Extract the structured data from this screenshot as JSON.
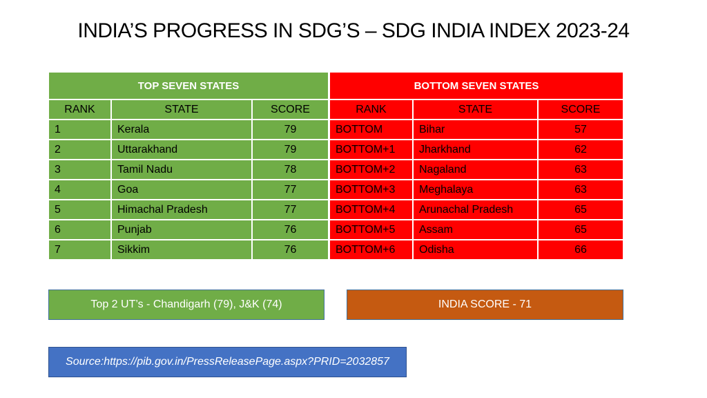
{
  "title": "INDIA’S PROGRESS IN SDG’S – SDG INDIA INDEX 2023-24",
  "top_table": {
    "heading": "TOP SEVEN STATES",
    "columns": [
      "RANK",
      "STATE",
      "SCORE"
    ],
    "rows": [
      {
        "rank": "1",
        "state": "Kerala",
        "score": "79"
      },
      {
        "rank": "2",
        "state": "Uttarakhand",
        "score": "79"
      },
      {
        "rank": "3",
        "state": "Tamil Nadu",
        "score": "78"
      },
      {
        "rank": "4",
        "state": "Goa",
        "score": "77"
      },
      {
        "rank": "5",
        "state": "Himachal Pradesh",
        "score": "77"
      },
      {
        "rank": "6",
        "state": "Punjab",
        "score": "76"
      },
      {
        "rank": "7",
        "state": "Sikkim",
        "score": "76"
      }
    ]
  },
  "bottom_table": {
    "heading": "BOTTOM SEVEN STATES",
    "columns": [
      "RANK",
      "STATE",
      "SCORE"
    ],
    "rows": [
      {
        "rank": "BOTTOM",
        "state": "Bihar",
        "score": "57"
      },
      {
        "rank": "BOTTOM+1",
        "state": "Jharkhand",
        "score": "62"
      },
      {
        "rank": "BOTTOM+2",
        "state": "Nagaland",
        "score": "63"
      },
      {
        "rank": "BOTTOM+3",
        "state": "Meghalaya",
        "score": "63"
      },
      {
        "rank": "BOTTOM+4",
        "state": "Arunachal Pradesh",
        "score": "65"
      },
      {
        "rank": "BOTTOM+5",
        "state": "Assam",
        "score": "65"
      },
      {
        "rank": "BOTTOM+6",
        "state": "Odisha",
        "score": "66"
      }
    ]
  },
  "ut_note": "Top 2 UT’s  - Chandigarh (79), J&K (74)",
  "india_score": "INDIA SCORE - 71",
  "source": "Source:https://pib.gov.in/PressReleasePage.aspx?PRID=2032857",
  "colors": {
    "top_green": "#70ad47",
    "bottom_red": "#ff0000",
    "india_orange": "#c55a11",
    "source_blue": "#4472c4"
  }
}
